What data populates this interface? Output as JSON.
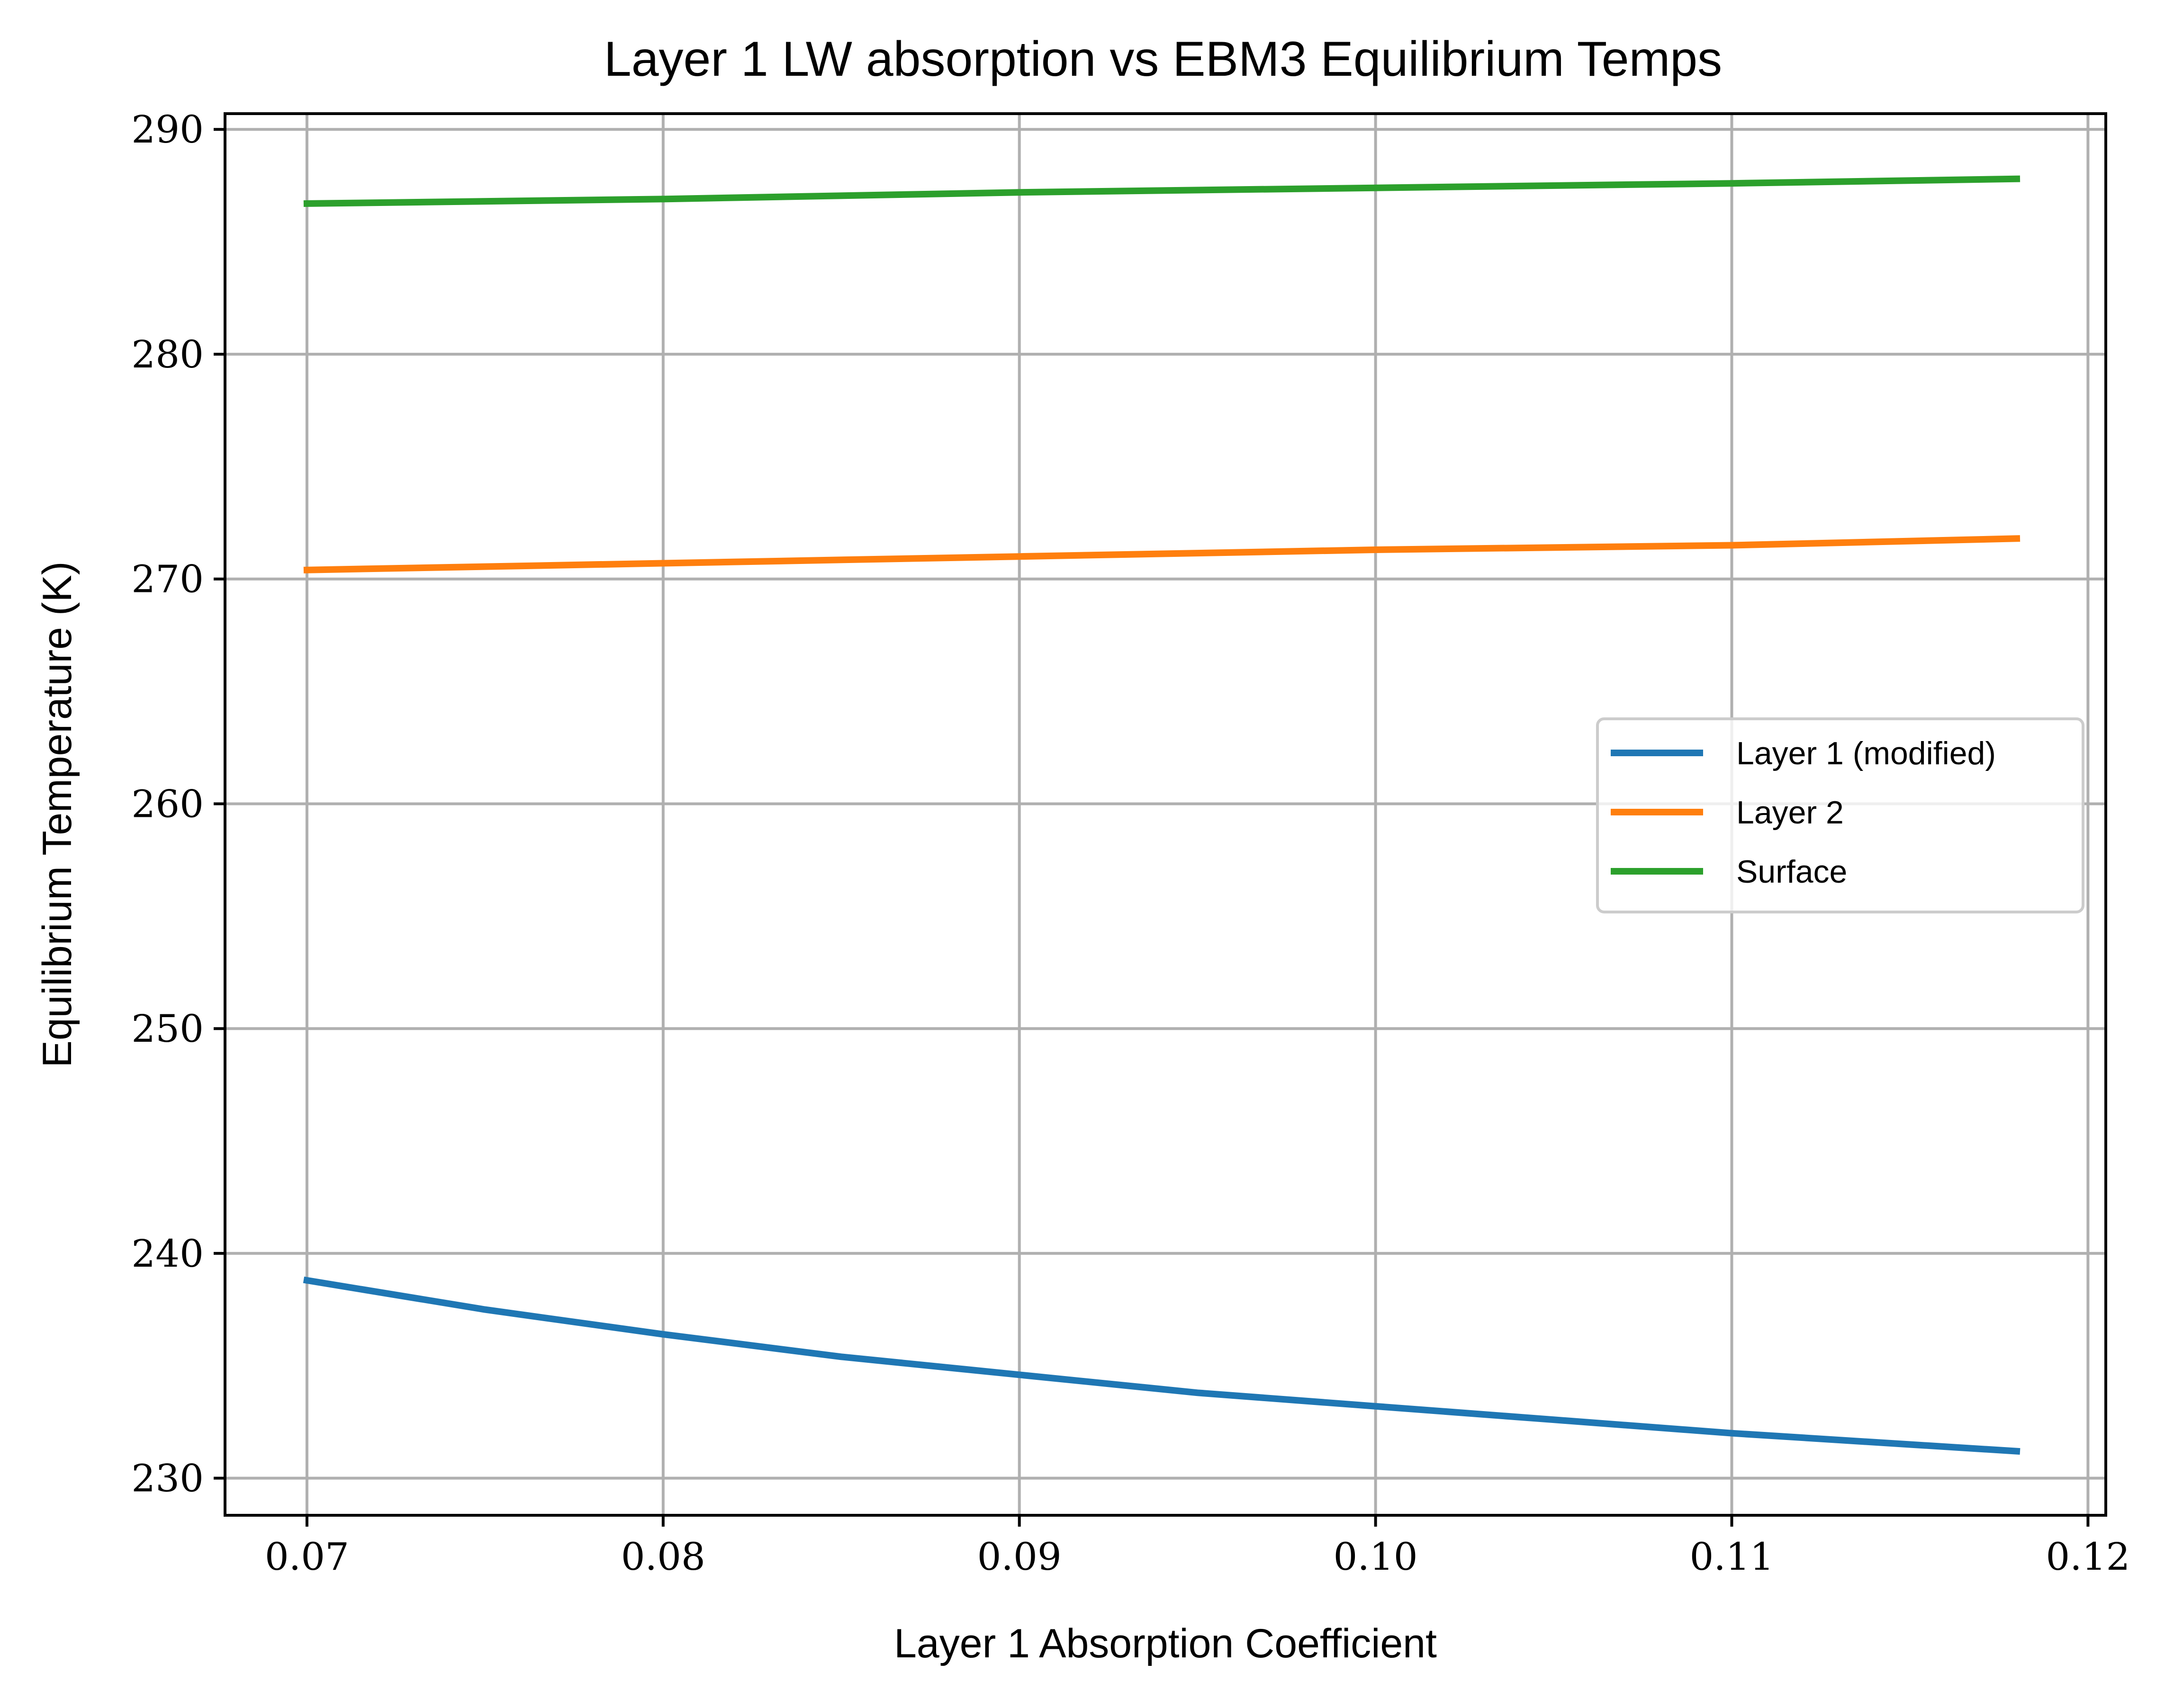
{
  "chart_data": {
    "type": "line",
    "title": "Layer 1 LW absorption vs EBM3 Equilibrium Temps",
    "xlabel": "Layer 1 Absorption Coefficient",
    "ylabel": "Equilibrium Temperature (K)",
    "xlim": [
      0.0677,
      0.1205
    ],
    "ylim": [
      228.35,
      290.7
    ],
    "xticks": [
      0.07,
      0.08,
      0.09,
      0.1,
      0.11,
      0.12
    ],
    "xtick_labels": [
      "0.07",
      "0.08",
      "0.09",
      "0.10",
      "0.11",
      "0.12"
    ],
    "yticks": [
      230,
      240,
      250,
      260,
      270,
      280,
      290
    ],
    "ytick_labels": [
      "230",
      "240",
      "250",
      "260",
      "270",
      "280",
      "290"
    ],
    "grid": true,
    "legend_position": "center-right",
    "series": [
      {
        "name": "Layer 1 (modified)",
        "color": "#1f77b4",
        "x": [
          0.07,
          0.075,
          0.08,
          0.085,
          0.09,
          0.095,
          0.1,
          0.105,
          0.11,
          0.115,
          0.118
        ],
        "y": [
          238.8,
          237.5,
          236.4,
          235.4,
          234.6,
          233.8,
          233.2,
          232.6,
          232.0,
          231.5,
          231.2
        ]
      },
      {
        "name": "Layer 2",
        "color": "#ff7f0e",
        "x": [
          0.07,
          0.08,
          0.09,
          0.1,
          0.11,
          0.118
        ],
        "y": [
          270.4,
          270.7,
          271.0,
          271.3,
          271.5,
          271.8
        ]
      },
      {
        "name": "Surface",
        "color": "#2ca02c",
        "x": [
          0.07,
          0.08,
          0.09,
          0.1,
          0.11,
          0.118
        ],
        "y": [
          286.7,
          286.9,
          287.2,
          287.4,
          287.6,
          287.8
        ]
      }
    ]
  }
}
